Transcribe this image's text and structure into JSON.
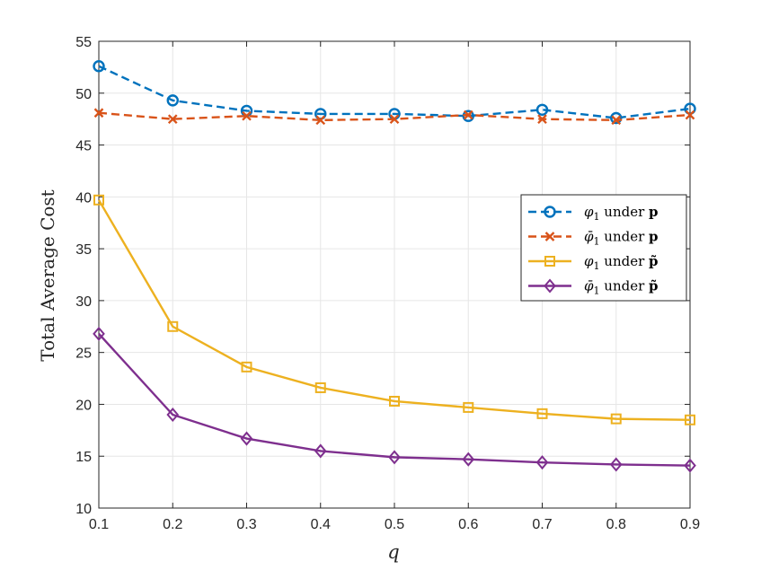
{
  "chart_data": {
    "type": "line",
    "title": "",
    "xlabel": "q",
    "ylabel": "Total Average Cost",
    "x": [
      0.1,
      0.2,
      0.3,
      0.4,
      0.5,
      0.6,
      0.7,
      0.8,
      0.9
    ],
    "x_tick_labels": [
      "0.1",
      "0.2",
      "0.3",
      "0.4",
      "0.5",
      "0.6",
      "0.7",
      "0.8",
      "0.9"
    ],
    "y_tick_labels": [
      "10",
      "15",
      "20",
      "25",
      "30",
      "35",
      "40",
      "45",
      "50",
      "55"
    ],
    "xlim": [
      0.1,
      0.9
    ],
    "ylim": [
      10,
      55
    ],
    "grid": true,
    "legend_position": "center-right",
    "series": [
      {
        "name": "φ1 under p",
        "color": "#0072BD",
        "line_style": "dashed",
        "marker": "circle",
        "values": [
          52.6,
          49.3,
          48.3,
          48.0,
          48.0,
          47.8,
          48.4,
          47.6,
          48.5
        ]
      },
      {
        "name": "φ̄1 under p",
        "color": "#D95319",
        "line_style": "dashed",
        "marker": "x",
        "values": [
          48.1,
          47.5,
          47.8,
          47.4,
          47.5,
          47.9,
          47.5,
          47.4,
          47.9
        ]
      },
      {
        "name": "φ1 under p̃",
        "color": "#EDB120",
        "line_style": "solid",
        "marker": "square",
        "values": [
          39.7,
          27.5,
          23.6,
          21.6,
          20.3,
          19.7,
          19.1,
          18.6,
          18.5
        ]
      },
      {
        "name": "φ̄1 under p̃",
        "color": "#7E2F8E",
        "line_style": "solid",
        "marker": "diamond",
        "values": [
          26.8,
          19.0,
          16.7,
          15.5,
          14.9,
          14.7,
          14.4,
          14.2,
          14.1
        ]
      }
    ]
  }
}
